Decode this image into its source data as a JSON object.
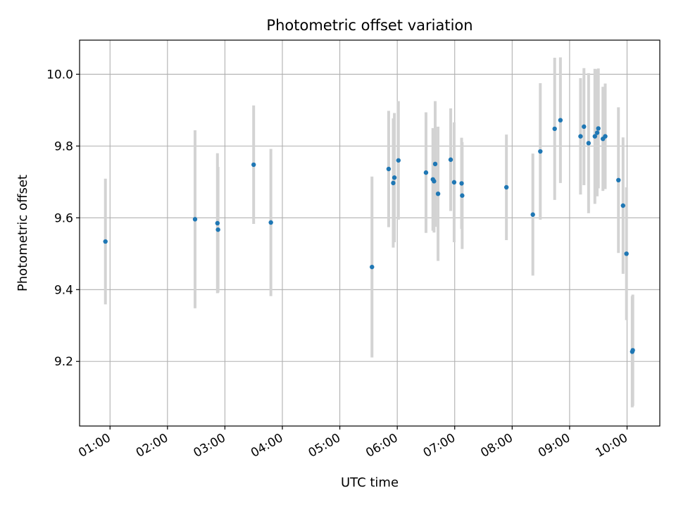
{
  "chart_data": {
    "type": "scatter",
    "title": "Photometric offset variation",
    "xlabel": "UTC time",
    "ylabel": "Photometric offset",
    "x_unit": "hours (UTC)",
    "xlim": [
      0.47,
      10.57
    ],
    "ylim": [
      9.02,
      10.095
    ],
    "grid": true,
    "x_ticks": [
      {
        "value": 1,
        "label": "01:00"
      },
      {
        "value": 2,
        "label": "02:00"
      },
      {
        "value": 3,
        "label": "03:00"
      },
      {
        "value": 4,
        "label": "04:00"
      },
      {
        "value": 5,
        "label": "05:00"
      },
      {
        "value": 6,
        "label": "06:00"
      },
      {
        "value": 7,
        "label": "07:00"
      },
      {
        "value": 8,
        "label": "08:00"
      },
      {
        "value": 9,
        "label": "09:00"
      },
      {
        "value": 10,
        "label": "10:00"
      }
    ],
    "y_ticks": [
      {
        "value": 9.2,
        "label": "9.2"
      },
      {
        "value": 9.4,
        "label": "9.4"
      },
      {
        "value": 9.6,
        "label": "9.6"
      },
      {
        "value": 9.8,
        "label": "9.8"
      },
      {
        "value": 10.0,
        "label": "10.0"
      }
    ],
    "colors": {
      "marker": "#1f77b4",
      "errorbar": "#d3d3d3",
      "grid": "#b0b0b0"
    },
    "points": [
      {
        "x": 0.92,
        "y": 9.534,
        "err": 0.175
      },
      {
        "x": 2.48,
        "y": 9.596,
        "err": 0.248
      },
      {
        "x": 2.87,
        "y": 9.585,
        "err": 0.195
      },
      {
        "x": 2.88,
        "y": 9.567,
        "err": 0.175
      },
      {
        "x": 3.5,
        "y": 9.748,
        "err": 0.165
      },
      {
        "x": 3.8,
        "y": 9.587,
        "err": 0.205
      },
      {
        "x": 5.56,
        "y": 9.463,
        "err": 0.252
      },
      {
        "x": 5.85,
        "y": 9.736,
        "err": 0.162
      },
      {
        "x": 5.93,
        "y": 9.697,
        "err": 0.18
      },
      {
        "x": 5.95,
        "y": 9.712,
        "err": 0.18
      },
      {
        "x": 6.02,
        "y": 9.76,
        "err": 0.165
      },
      {
        "x": 6.5,
        "y": 9.726,
        "err": 0.168
      },
      {
        "x": 6.62,
        "y": 9.707,
        "err": 0.143
      },
      {
        "x": 6.64,
        "y": 9.702,
        "err": 0.143
      },
      {
        "x": 6.66,
        "y": 9.75,
        "err": 0.175
      },
      {
        "x": 6.71,
        "y": 9.667,
        "err": 0.187
      },
      {
        "x": 6.93,
        "y": 9.762,
        "err": 0.143
      },
      {
        "x": 6.99,
        "y": 9.699,
        "err": 0.167
      },
      {
        "x": 7.12,
        "y": 9.696,
        "err": 0.127
      },
      {
        "x": 7.13,
        "y": 9.662,
        "err": 0.149
      },
      {
        "x": 7.9,
        "y": 9.685,
        "err": 0.147
      },
      {
        "x": 8.36,
        "y": 9.609,
        "err": 0.17
      },
      {
        "x": 8.49,
        "y": 9.785,
        "err": 0.19
      },
      {
        "x": 8.74,
        "y": 9.848,
        "err": 0.198
      },
      {
        "x": 8.84,
        "y": 9.872,
        "err": 0.175
      },
      {
        "x": 9.19,
        "y": 9.827,
        "err": 0.162
      },
      {
        "x": 9.25,
        "y": 9.854,
        "err": 0.163
      },
      {
        "x": 9.33,
        "y": 9.808,
        "err": 0.195
      },
      {
        "x": 9.44,
        "y": 9.827,
        "err": 0.188
      },
      {
        "x": 9.48,
        "y": 9.837,
        "err": 0.177
      },
      {
        "x": 9.5,
        "y": 9.849,
        "err": 0.167
      },
      {
        "x": 9.58,
        "y": 9.82,
        "err": 0.145
      },
      {
        "x": 9.62,
        "y": 9.827,
        "err": 0.147
      },
      {
        "x": 9.85,
        "y": 9.705,
        "err": 0.203
      },
      {
        "x": 9.93,
        "y": 9.634,
        "err": 0.19
      },
      {
        "x": 9.99,
        "y": 9.5,
        "err": 0.185
      },
      {
        "x": 10.09,
        "y": 9.227,
        "err": 0.155
      },
      {
        "x": 10.1,
        "y": 9.231,
        "err": 0.155
      }
    ]
  }
}
